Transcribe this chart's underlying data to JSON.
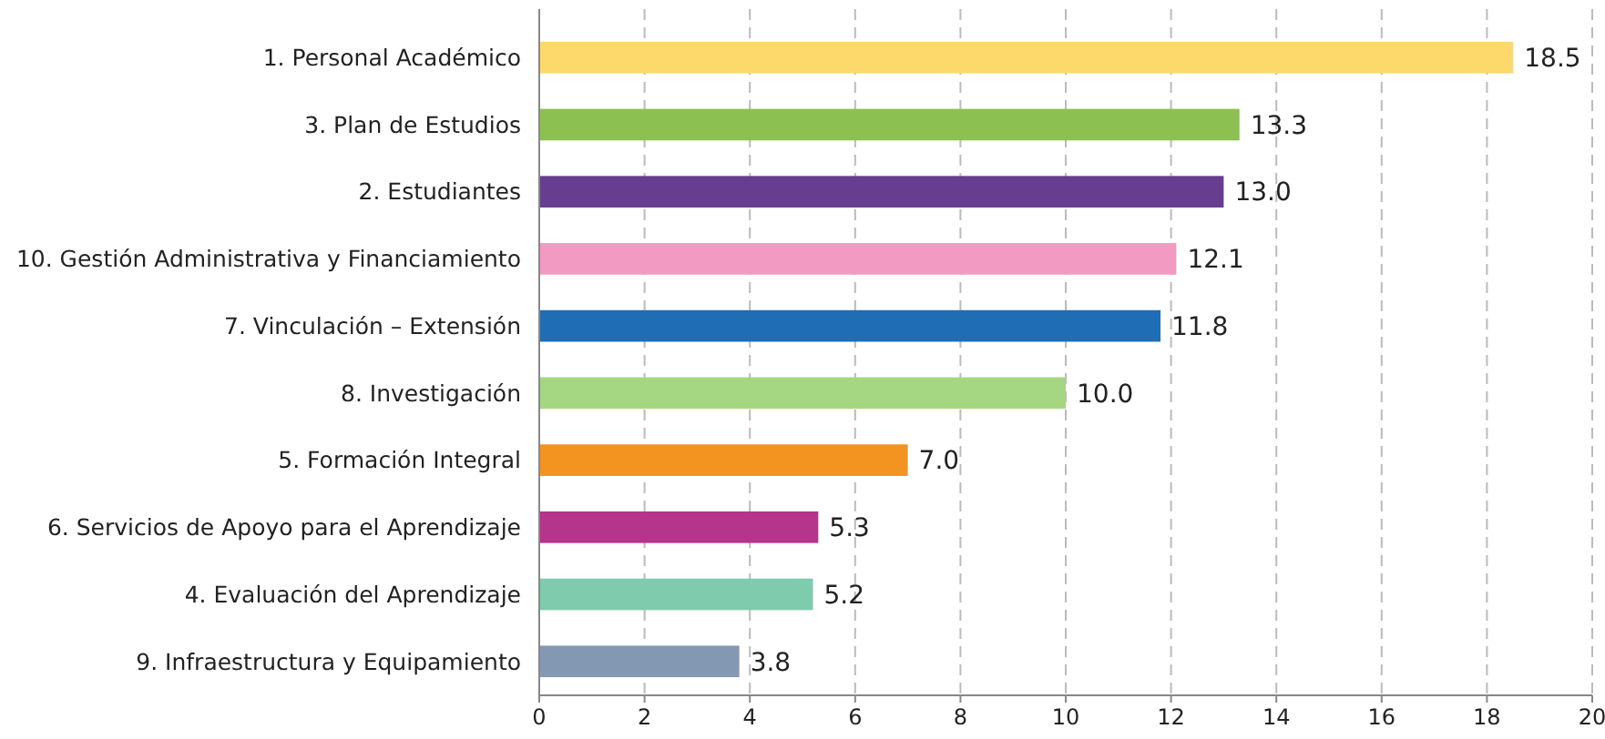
{
  "chart_data": {
    "type": "bar",
    "orientation": "horizontal",
    "categories": [
      "1.  Personal Académico",
      "3. Plan de Estudios",
      "2.  Estudiantes",
      "10. Gestión Administrativa y Financiamiento",
      "7. Vinculación –  Extensión",
      "8. Investigación",
      "5. Formación Integral",
      "6.  Servicios de Apoyo para el Aprendizaje",
      "4. Evaluación del Aprendizaje",
      "9. Infraestructura y Equipamiento"
    ],
    "values": [
      18.5,
      13.3,
      13.0,
      12.1,
      11.8,
      10.0,
      7.0,
      5.3,
      5.2,
      3.8
    ],
    "value_labels": [
      "18.5",
      "13.3",
      "13.0",
      "12.1",
      "11.8",
      "10.0",
      "7.0",
      "5.3",
      "5.2",
      "3.8"
    ],
    "colors": [
      "#fdd86b",
      "#8cc152",
      "#663d8f",
      "#f29ac2",
      "#1f6db5",
      "#a5d681",
      "#f39320",
      "#b4358b",
      "#7ecbad",
      "#8399b3"
    ],
    "xlim": [
      0,
      20
    ],
    "xticks": [
      0,
      2,
      4,
      6,
      8,
      10,
      12,
      14,
      16,
      18,
      20
    ],
    "grid": "x"
  }
}
